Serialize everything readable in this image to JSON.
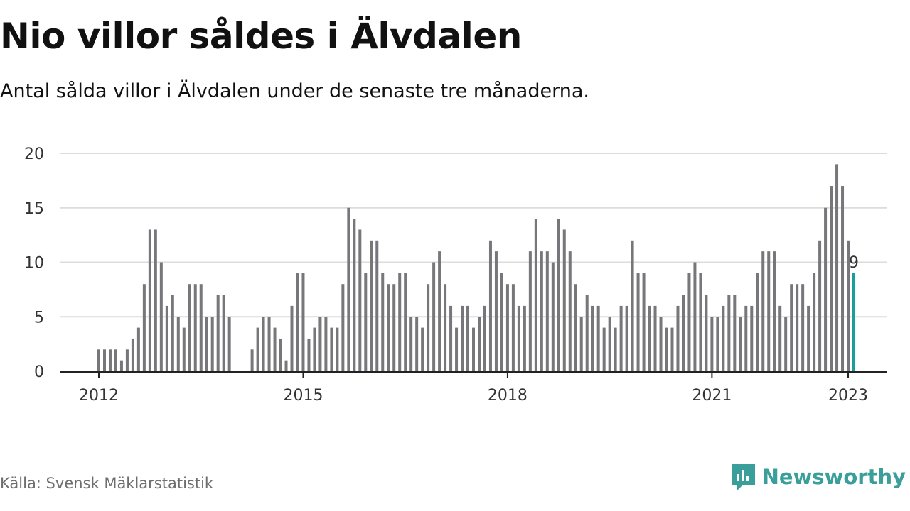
{
  "title": "Nio villor såldes i Älvdalen",
  "subtitle": "Antal sålda villor i Älvdalen under de senaste tre månaderna.",
  "source": "Källa: Svensk Mäklarstatistik",
  "brand": {
    "name": "Newsworthy",
    "icon": "newsworthy-logo-icon",
    "color": "#3a9e9a"
  },
  "chart_data": {
    "type": "bar",
    "title": "Nio villor såldes i Älvdalen",
    "xlabel": "",
    "ylabel": "",
    "ylim": [
      0,
      20
    ],
    "yticks": [
      0,
      5,
      10,
      15,
      20
    ],
    "xticks": [
      "2012",
      "2015",
      "2018",
      "2021",
      "2023"
    ],
    "grid": true,
    "bar_color": "#77767b",
    "highlight_color": "#1a9e9a",
    "last_label": "9",
    "start": "2012-01",
    "end": "2023-01",
    "frequency": "monthly",
    "values": [
      2,
      2,
      2,
      2,
      1,
      2,
      3,
      4,
      8,
      13,
      13,
      10,
      6,
      7,
      5,
      4,
      8,
      8,
      8,
      5,
      5,
      7,
      7,
      5,
      null,
      null,
      null,
      2,
      4,
      5,
      5,
      4,
      3,
      1,
      6,
      9,
      9,
      3,
      4,
      5,
      5,
      4,
      4,
      8,
      15,
      14,
      13,
      9,
      12,
      12,
      9,
      8,
      8,
      9,
      9,
      5,
      5,
      4,
      8,
      10,
      11,
      8,
      6,
      4,
      6,
      6,
      4,
      5,
      6,
      12,
      11,
      9,
      8,
      8,
      6,
      6,
      11,
      14,
      11,
      11,
      10,
      14,
      13,
      11,
      8,
      5,
      7,
      6,
      6,
      4,
      5,
      4,
      6,
      6,
      12,
      9,
      9,
      6,
      6,
      5,
      4,
      4,
      6,
      7,
      9,
      10,
      9,
      7,
      5,
      5,
      6,
      7,
      7,
      5,
      6,
      6,
      9,
      11,
      11,
      11,
      6,
      5,
      8,
      8,
      8,
      6,
      9,
      12,
      15,
      17,
      19,
      17,
      12,
      9
    ]
  }
}
